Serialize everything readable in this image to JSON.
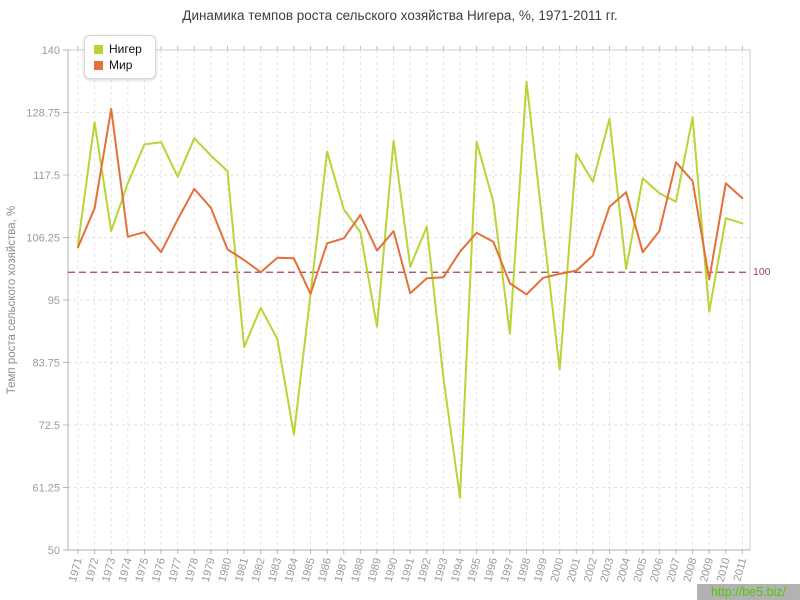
{
  "chart_data": {
    "type": "line",
    "title": "Динамика темпов роста сельского хозяйства Нигера, %, 1971-2011 гг.",
    "ylabel": "Темп роста сельского хозяйства, %",
    "xlabel": "",
    "ylim": [
      50,
      140
    ],
    "yticks": [
      "140",
      "128.75",
      "117.5",
      "106.25",
      "95",
      "83.75",
      "72.5",
      "61.25",
      "50"
    ],
    "grid": true,
    "legend_position": "top-left",
    "x": [
      "1971",
      "1972",
      "1973",
      "1974",
      "1975",
      "1976",
      "1977",
      "1978",
      "1979",
      "1980",
      "1981",
      "1982",
      "1983",
      "1984",
      "1985",
      "1986",
      "1987",
      "1988",
      "1989",
      "1990",
      "1991",
      "1992",
      "1993",
      "1994",
      "1995",
      "1996",
      "1997",
      "1998",
      "1999",
      "2000",
      "2001",
      "2002",
      "2003",
      "2004",
      "2005",
      "2006",
      "2007",
      "2008",
      "2009",
      "2010",
      "2011"
    ],
    "series": [
      {
        "name": "Нигер",
        "color": "#b9d435",
        "values": [
          105.0,
          127.0,
          107.4,
          116.0,
          123.0,
          123.4,
          117.2,
          124.1,
          121.0,
          118.2,
          86.5,
          93.6,
          88.0,
          70.8,
          96.0,
          121.7,
          111.3,
          107.2,
          90.2,
          123.7,
          101.0,
          108.2,
          81.0,
          59.4,
          123.5,
          112.7,
          88.9,
          134.3,
          108.0,
          82.5,
          121.3,
          116.3,
          127.6,
          100.6,
          116.9,
          114.2,
          112.7,
          127.9,
          92.9,
          109.7,
          108.8
        ]
      },
      {
        "name": "Мир",
        "color": "#e4703a",
        "values": [
          104.5,
          111.5,
          129.4,
          106.4,
          107.2,
          103.6,
          109.5,
          115.0,
          111.6,
          104.1,
          102.2,
          100.0,
          102.6,
          102.5,
          96.1,
          105.2,
          106.1,
          110.3,
          103.9,
          107.4,
          96.2,
          98.9,
          99.1,
          103.7,
          107.1,
          105.5,
          98.0,
          96.0,
          99.0,
          99.7,
          100.3,
          103.0,
          111.8,
          114.4,
          103.6,
          107.4,
          119.8,
          116.4,
          98.7,
          116.0,
          113.3
        ]
      }
    ],
    "reference_line": {
      "value": 100,
      "label": "100",
      "color": "#a3424e"
    }
  },
  "watermark": {
    "text": "http://be5.biz/",
    "color": "#54c600",
    "background": "#b2b2b2"
  }
}
